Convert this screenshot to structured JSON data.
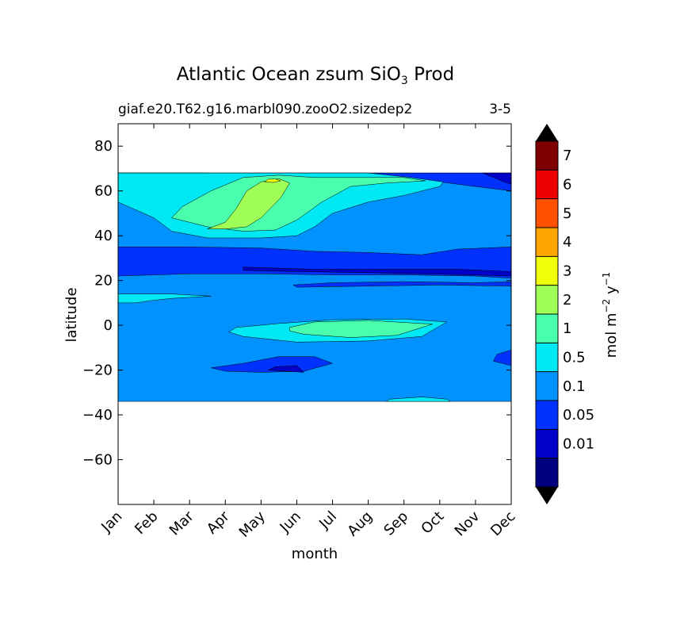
{
  "chart_data": {
    "type": "heatmap",
    "title_prefix": "Atlantic Ocean zsum SiO",
    "title_sub": "3",
    "title_suffix": " Prod",
    "subtitle_left": "giaf.e20.T62.g16.marbl090.zooO2.sizedep2",
    "subtitle_right": "3-5",
    "xlabel": "month",
    "ylabel": "latitude",
    "x_ticks": [
      "Jan",
      "Feb",
      "Mar",
      "Apr",
      "May",
      "Jun",
      "Jul",
      "Aug",
      "Sep",
      "Oct",
      "Nov",
      "Dec"
    ],
    "x_range": [
      0,
      11
    ],
    "ylim": [
      -80,
      90
    ],
    "y_ticks": [
      80,
      60,
      40,
      20,
      0,
      -20,
      -40,
      -60
    ],
    "y_tick_labels": [
      "80",
      "60",
      "40",
      "20",
      "0",
      "−20",
      "−40",
      "−60"
    ],
    "data_lat_range": [
      -34,
      68
    ],
    "colorbar": {
      "label_main": "mol m",
      "label_exp1": "−2",
      "label_mid": " y",
      "label_exp2": "−1",
      "levels": [
        0,
        0.01,
        0.05,
        0.1,
        0.5,
        1,
        2,
        3,
        4,
        5,
        6,
        7,
        8
      ],
      "tick_labels": [
        "0.01",
        "0.05",
        "0.1",
        "0.5",
        "1",
        "2",
        "3",
        "4",
        "5",
        "6",
        "7"
      ],
      "colors": [
        "#00007f",
        "#0000c8",
        "#0032ff",
        "#0092ff",
        "#00e8f4",
        "#49ffad",
        "#a0ff56",
        "#f1ff06",
        "#ffa700",
        "#ff5100",
        "#ee0000",
        "#7f0000"
      ],
      "under_color": "#000000",
      "over_color": "#000000"
    },
    "regions": [
      {
        "level": 0.1,
        "shape": [
          [
            0,
            -34
          ],
          [
            11,
            -34
          ],
          [
            11,
            68
          ],
          [
            0,
            68
          ]
        ]
      },
      {
        "level": 0.05,
        "shape": [
          [
            0,
            68
          ],
          [
            0,
            64
          ],
          [
            1,
            62
          ],
          [
            3,
            63
          ],
          [
            5,
            64
          ],
          [
            7,
            65
          ],
          [
            9,
            64
          ],
          [
            10,
            62
          ],
          [
            11,
            60
          ],
          [
            11,
            68
          ]
        ]
      },
      {
        "level": 0.05,
        "shape": [
          [
            0,
            35
          ],
          [
            2,
            35
          ],
          [
            4,
            34.5
          ],
          [
            5.5,
            33
          ],
          [
            7,
            32.5
          ],
          [
            8.5,
            31.5
          ],
          [
            9.5,
            34
          ],
          [
            11,
            35
          ],
          [
            11,
            21
          ],
          [
            10,
            22
          ],
          [
            8,
            22.5
          ],
          [
            6,
            22.5
          ],
          [
            4,
            23
          ],
          [
            2,
            23
          ],
          [
            0,
            22
          ]
        ]
      },
      {
        "level": 0.05,
        "shape": [
          [
            4.9,
            18
          ],
          [
            6,
            19
          ],
          [
            8,
            19.5
          ],
          [
            10,
            19
          ],
          [
            11,
            19.5
          ],
          [
            11,
            17.5
          ],
          [
            9,
            18
          ],
          [
            7,
            17.5
          ],
          [
            5,
            17
          ]
        ]
      },
      {
        "level": 0.05,
        "shape": [
          [
            2.6,
            -19
          ],
          [
            3.5,
            -17
          ],
          [
            4.5,
            -14
          ],
          [
            5.5,
            -14
          ],
          [
            6,
            -17
          ],
          [
            5.2,
            -20.5
          ],
          [
            4,
            -21
          ],
          [
            3,
            -20.5
          ]
        ]
      },
      {
        "level": 0.05,
        "shape": [
          [
            10.5,
            -16
          ],
          [
            11,
            -18
          ],
          [
            11,
            -11
          ],
          [
            10.6,
            -13
          ]
        ]
      },
      {
        "level": 0.01,
        "shape": [
          [
            0,
            68
          ],
          [
            0,
            66.5
          ],
          [
            1.5,
            67
          ],
          [
            2.5,
            68
          ]
        ]
      },
      {
        "level": 0.01,
        "shape": [
          [
            10.2,
            68
          ],
          [
            10.8,
            64
          ],
          [
            11,
            63
          ],
          [
            11,
            68
          ]
        ]
      },
      {
        "level": 0.01,
        "shape": [
          [
            3.5,
            26
          ],
          [
            5.5,
            25
          ],
          [
            7.5,
            25
          ],
          [
            9.5,
            25
          ],
          [
            11,
            24
          ],
          [
            11,
            22
          ],
          [
            9,
            22.8
          ],
          [
            7,
            23.5
          ],
          [
            5,
            24
          ],
          [
            3.5,
            24.5
          ]
        ]
      },
      {
        "level": 0.01,
        "shape": [
          [
            4.2,
            -20
          ],
          [
            5.2,
            -21
          ],
          [
            5,
            -18
          ],
          [
            4.4,
            -18.5
          ]
        ]
      },
      {
        "level": 0.5,
        "shape": [
          [
            0,
            55
          ],
          [
            1,
            48
          ],
          [
            1.5,
            42
          ],
          [
            2.5,
            39
          ],
          [
            4,
            39
          ],
          [
            5,
            40
          ],
          [
            5.5,
            44
          ],
          [
            6,
            50
          ],
          [
            7,
            55
          ],
          [
            8,
            58
          ],
          [
            9,
            62
          ],
          [
            9.1,
            64
          ],
          [
            8.2,
            66
          ],
          [
            7,
            68
          ],
          [
            0,
            68
          ]
        ]
      },
      {
        "level": 0.5,
        "shape": [
          [
            0,
            14
          ],
          [
            1.5,
            14
          ],
          [
            2.6,
            13
          ],
          [
            1.5,
            12
          ],
          [
            0.9,
            11
          ],
          [
            0.5,
            10
          ],
          [
            0,
            10
          ]
        ]
      },
      {
        "level": 0.5,
        "shape": [
          [
            3.3,
            -1
          ],
          [
            4.5,
            0.8
          ],
          [
            6,
            2.5
          ],
          [
            8,
            2.8
          ],
          [
            9.2,
            1.5
          ],
          [
            8.5,
            -5
          ],
          [
            7,
            -7
          ],
          [
            5,
            -7.5
          ],
          [
            3.5,
            -5
          ],
          [
            3.1,
            -3
          ]
        ]
      },
      {
        "level": 0.5,
        "shape": [
          [
            7.6,
            -33
          ],
          [
            8.5,
            -32
          ],
          [
            9.2,
            -33
          ],
          [
            9.3,
            -34
          ],
          [
            7.5,
            -34
          ]
        ]
      },
      {
        "level": 1,
        "shape": [
          [
            1.5,
            48
          ],
          [
            1.8,
            53
          ],
          [
            2.6,
            60
          ],
          [
            3.5,
            66
          ],
          [
            4.5,
            67
          ],
          [
            5.5,
            66
          ],
          [
            6,
            66
          ],
          [
            7,
            66
          ],
          [
            8,
            66
          ],
          [
            8.6,
            64.5
          ],
          [
            7.5,
            63.5
          ],
          [
            6.5,
            62
          ],
          [
            5.7,
            55
          ],
          [
            5,
            47
          ],
          [
            4.4,
            42.5
          ],
          [
            3.5,
            42
          ],
          [
            2.5,
            44
          ]
        ]
      },
      {
        "level": 1,
        "shape": [
          [
            4.8,
            -1
          ],
          [
            5.5,
            1.5
          ],
          [
            7,
            2.2
          ],
          [
            8.8,
            0.5
          ],
          [
            7.8,
            -4.5
          ],
          [
            6.5,
            -5.5
          ],
          [
            5.2,
            -4
          ],
          [
            4.8,
            -2.5
          ]
        ]
      },
      {
        "level": 2,
        "shape": [
          [
            2.5,
            43
          ],
          [
            3,
            46
          ],
          [
            3.3,
            52
          ],
          [
            3.6,
            60
          ],
          [
            4,
            64
          ],
          [
            4.5,
            65.5
          ],
          [
            4.8,
            63.5
          ],
          [
            4.55,
            57
          ],
          [
            4,
            48
          ],
          [
            3.6,
            44
          ],
          [
            3,
            43
          ]
        ]
      },
      {
        "level": 3,
        "shape": [
          [
            4.1,
            64
          ],
          [
            4.2,
            65.2
          ],
          [
            4.4,
            65.3
          ],
          [
            4.55,
            64.5
          ],
          [
            4.35,
            63.8
          ]
        ]
      }
    ]
  }
}
